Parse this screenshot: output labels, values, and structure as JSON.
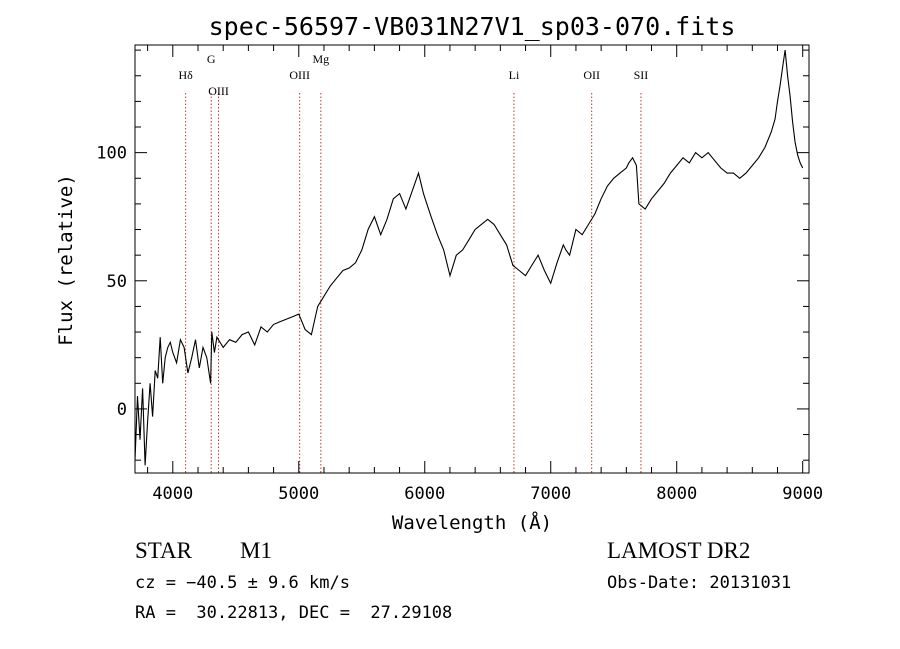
{
  "chart_data": {
    "type": "line",
    "title": "spec-56597-VB031N27V1_sp03-070.fits",
    "xlabel": "Wavelength (Å)",
    "ylabel": "Flux (relative)",
    "xlim": [
      3700,
      9050
    ],
    "ylim": [
      -25,
      142
    ],
    "xticks": [
      4000,
      5000,
      6000,
      7000,
      8000,
      9000
    ],
    "yticks": [
      0,
      50,
      100
    ],
    "xtick_labels": [
      "4000",
      "5000",
      "6000",
      "7000",
      "8000",
      "9000"
    ],
    "ytick_labels": [
      "0",
      "50",
      "100"
    ],
    "grid": false,
    "line_color": "#000000",
    "marker_color": "#c0392b",
    "series": [
      {
        "x": [
          3700,
          3720,
          3740,
          3760,
          3780,
          3800,
          3820,
          3840,
          3860,
          3880,
          3900,
          3920,
          3940,
          3960,
          3980,
          4000,
          4030,
          4060,
          4090,
          4120,
          4150,
          4180,
          4210,
          4240,
          4270,
          4300,
          4310,
          4330,
          4350,
          4400,
          4450,
          4500,
          4550,
          4600,
          4650,
          4700,
          4750,
          4800,
          4850,
          4900,
          4950,
          5000,
          5050,
          5100,
          5150,
          5200,
          5250,
          5300,
          5350,
          5400,
          5450,
          5500,
          5550,
          5600,
          5650,
          5700,
          5750,
          5800,
          5850,
          5900,
          5950,
          5990,
          6010,
          6050,
          6100,
          6150,
          6200,
          6250,
          6300,
          6350,
          6400,
          6450,
          6500,
          6550,
          6600,
          6650,
          6700,
          6750,
          6800,
          6850,
          6900,
          6950,
          7000,
          7050,
          7100,
          7120,
          7150,
          7200,
          7250,
          7300,
          7350,
          7400,
          7450,
          7500,
          7550,
          7600,
          7620,
          7650,
          7680,
          7700,
          7750,
          7800,
          7850,
          7900,
          7950,
          8000,
          8050,
          8100,
          8150,
          8200,
          8250,
          8300,
          8350,
          8400,
          8450,
          8500,
          8550,
          8600,
          8650,
          8700,
          8750,
          8780,
          8800,
          8820,
          8840,
          8860,
          8880,
          8900,
          8920,
          8940,
          8960,
          8980,
          9000
        ],
        "y": [
          -20,
          5,
          -12,
          8,
          -22,
          -5,
          10,
          -3,
          15,
          12,
          28,
          10,
          20,
          24,
          26,
          22,
          18,
          27,
          24,
          14,
          20,
          27,
          16,
          24,
          20,
          10,
          30,
          22,
          28,
          24,
          27,
          26,
          29,
          30,
          25,
          32,
          30,
          33,
          34,
          35,
          36,
          37,
          31,
          29,
          40,
          44,
          48,
          51,
          54,
          55,
          57,
          62,
          70,
          75,
          68,
          74,
          82,
          84,
          78,
          85,
          92,
          84,
          81,
          75,
          68,
          62,
          52,
          60,
          62,
          66,
          70,
          72,
          74,
          72,
          68,
          64,
          56,
          54,
          52,
          56,
          60,
          54,
          49,
          57,
          64,
          62,
          60,
          70,
          68,
          72,
          76,
          82,
          87,
          90,
          92,
          94,
          96,
          98,
          95,
          80,
          78,
          82,
          85,
          88,
          92,
          95,
          98,
          96,
          100,
          98,
          100,
          97,
          94,
          92,
          92,
          90,
          92,
          95,
          98,
          102,
          108,
          113,
          120,
          126,
          133,
          140,
          130,
          122,
          112,
          104,
          99,
          96,
          94
        ]
      }
    ],
    "line_markers": [
      {
        "label": "Hδ",
        "x": 4102
      },
      {
        "label": "G",
        "x": 4305
      },
      {
        "label": "OIII",
        "x": 4363
      },
      {
        "label": "OIII",
        "x": 5007
      },
      {
        "label": "Mg",
        "x": 5175
      },
      {
        "label": "Li",
        "x": 6708
      },
      {
        "label": "OII",
        "x": 7325
      },
      {
        "label": "SII",
        "x": 7716
      }
    ]
  },
  "info": {
    "object_type": "STAR",
    "subclass": "M1",
    "survey": "LAMOST DR2",
    "cz": "cz = −40.5 ± 9.6 km/s",
    "obs_date": "Obs-Date: 20131031",
    "coords": "RA =  30.22813, DEC =  27.29108"
  }
}
